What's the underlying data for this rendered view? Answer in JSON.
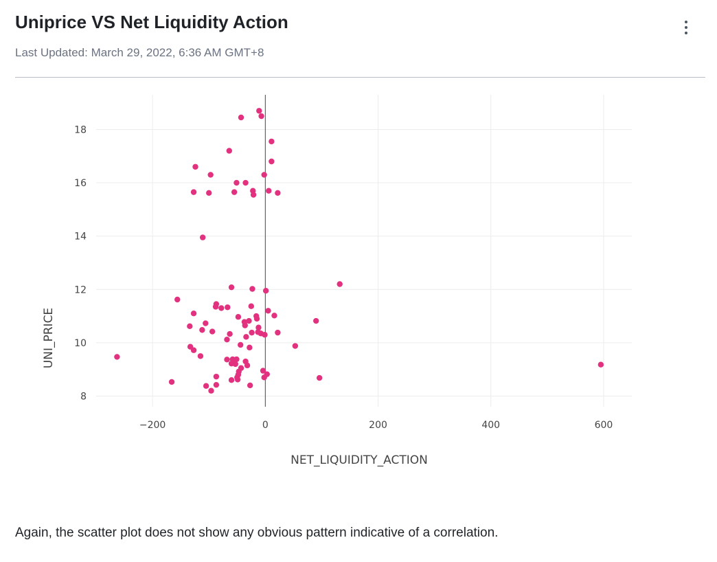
{
  "header": {
    "title": "Uniprice VS Net Liquidity Action",
    "last_updated": "Last Updated: March 29, 2022, 6:36 AM GMT+8"
  },
  "caption": "Again, the scatter plot does not show any obvious pattern indicative of a correlation.",
  "colors": {
    "marker": "#e2317f",
    "grid": "#ececec",
    "zero_line": "#444444"
  },
  "chart_data": {
    "type": "scatter",
    "title": "",
    "xlabel": "NET_LIQUIDITY_ACTION",
    "ylabel": "UNI_PRICE",
    "xlim": [
      -300,
      650
    ],
    "ylim": [
      7.6,
      19.3
    ],
    "xticks": [
      -200,
      0,
      200,
      400,
      600
    ],
    "xtick_labels": [
      "−200",
      "0",
      "200",
      "400",
      "600"
    ],
    "yticks": [
      8,
      10,
      12,
      14,
      16,
      18
    ],
    "ytick_labels": [
      "8",
      "10",
      "12",
      "14",
      "16",
      "18"
    ],
    "grid": true,
    "zero_line_x": true,
    "points": [
      {
        "x": -11,
        "y": 18.7
      },
      {
        "x": -7,
        "y": 18.5
      },
      {
        "x": -43,
        "y": 18.45
      },
      {
        "x": 11,
        "y": 17.55
      },
      {
        "x": -64,
        "y": 17.2
      },
      {
        "x": 11,
        "y": 16.8
      },
      {
        "x": -124,
        "y": 16.6
      },
      {
        "x": -97,
        "y": 16.3
      },
      {
        "x": -2,
        "y": 16.3
      },
      {
        "x": -51,
        "y": 16.0
      },
      {
        "x": -35,
        "y": 16.0
      },
      {
        "x": -127,
        "y": 15.65
      },
      {
        "x": -100,
        "y": 15.62
      },
      {
        "x": -55,
        "y": 15.65
      },
      {
        "x": -22,
        "y": 15.7
      },
      {
        "x": -21,
        "y": 15.55
      },
      {
        "x": 6,
        "y": 15.7
      },
      {
        "x": 22,
        "y": 15.62
      },
      {
        "x": -111,
        "y": 13.95
      },
      {
        "x": 132,
        "y": 12.2
      },
      {
        "x": -60,
        "y": 12.08
      },
      {
        "x": -23,
        "y": 12.02
      },
      {
        "x": 1,
        "y": 11.95
      },
      {
        "x": -156,
        "y": 11.62
      },
      {
        "x": -87,
        "y": 11.45
      },
      {
        "x": -88,
        "y": 11.35
      },
      {
        "x": -78,
        "y": 11.3
      },
      {
        "x": -67,
        "y": 11.33
      },
      {
        "x": -25,
        "y": 11.37
      },
      {
        "x": -127,
        "y": 11.1
      },
      {
        "x": 5,
        "y": 11.2
      },
      {
        "x": 16,
        "y": 11.02
      },
      {
        "x": -16,
        "y": 11.0
      },
      {
        "x": -48,
        "y": 10.97
      },
      {
        "x": -15,
        "y": 10.9
      },
      {
        "x": -29,
        "y": 10.82
      },
      {
        "x": 90,
        "y": 10.82
      },
      {
        "x": -37,
        "y": 10.78
      },
      {
        "x": -106,
        "y": 10.73
      },
      {
        "x": -36,
        "y": 10.65
      },
      {
        "x": -134,
        "y": 10.62
      },
      {
        "x": -12,
        "y": 10.57
      },
      {
        "x": -112,
        "y": 10.48
      },
      {
        "x": -94,
        "y": 10.42
      },
      {
        "x": -24,
        "y": 10.38
      },
      {
        "x": -13,
        "y": 10.4
      },
      {
        "x": 22,
        "y": 10.38
      },
      {
        "x": -63,
        "y": 10.33
      },
      {
        "x": -8,
        "y": 10.35
      },
      {
        "x": -1,
        "y": 10.3
      },
      {
        "x": -34,
        "y": 10.22
      },
      {
        "x": -68,
        "y": 10.12
      },
      {
        "x": -44,
        "y": 9.92
      },
      {
        "x": 53,
        "y": 9.88
      },
      {
        "x": -133,
        "y": 9.85
      },
      {
        "x": -28,
        "y": 9.82
      },
      {
        "x": -127,
        "y": 9.72
      },
      {
        "x": -115,
        "y": 9.5
      },
      {
        "x": -263,
        "y": 9.47
      },
      {
        "x": -68,
        "y": 9.37
      },
      {
        "x": -58,
        "y": 9.38
      },
      {
        "x": -51,
        "y": 9.38
      },
      {
        "x": -35,
        "y": 9.3
      },
      {
        "x": -60,
        "y": 9.22
      },
      {
        "x": -53,
        "y": 9.2
      },
      {
        "x": -32,
        "y": 9.15
      },
      {
        "x": 595,
        "y": 9.18
      },
      {
        "x": -43,
        "y": 9.05
      },
      {
        "x": -47,
        "y": 8.92
      },
      {
        "x": -4,
        "y": 8.95
      },
      {
        "x": 3,
        "y": 8.82
      },
      {
        "x": -48,
        "y": 8.8
      },
      {
        "x": -87,
        "y": 8.73
      },
      {
        "x": -50,
        "y": 8.7
      },
      {
        "x": -2,
        "y": 8.7
      },
      {
        "x": 96,
        "y": 8.68
      },
      {
        "x": -49,
        "y": 8.62
      },
      {
        "x": -60,
        "y": 8.6
      },
      {
        "x": -166,
        "y": 8.53
      },
      {
        "x": -87,
        "y": 8.42
      },
      {
        "x": -105,
        "y": 8.38
      },
      {
        "x": -27,
        "y": 8.4
      },
      {
        "x": -96,
        "y": 8.2
      }
    ]
  }
}
